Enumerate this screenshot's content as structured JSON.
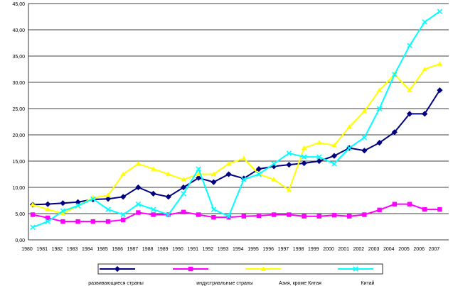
{
  "chart_data": {
    "type": "line",
    "x": [
      "1980",
      "1981",
      "1982",
      "1983",
      "1984",
      "1985",
      "1986",
      "1987",
      "1988",
      "1989",
      "1990",
      "1991",
      "1992",
      "1993",
      "1994",
      "1995",
      "1996",
      "1997",
      "1998",
      "1999",
      "2000",
      "2001",
      "2002",
      "2003",
      "2004",
      "2005",
      "2006",
      "2007"
    ],
    "y_ticks": [
      "0,00",
      "5,00",
      "10,00",
      "15,00",
      "20,00",
      "25,00",
      "30,00",
      "35,00",
      "40,00",
      "45,00"
    ],
    "ylim": [
      0,
      45
    ],
    "grid": true,
    "legend_position": "bottom",
    "series": [
      {
        "name": "развивающиеся страны",
        "color": "#000080",
        "marker": "diamond",
        "values": [
          6.7,
          6.8,
          7.0,
          7.2,
          7.7,
          7.8,
          8.2,
          10.0,
          8.8,
          8.2,
          10.0,
          11.8,
          11.0,
          12.5,
          11.7,
          13.5,
          14.0,
          14.3,
          14.6,
          15.0,
          16.0,
          17.5,
          17.0,
          18.5,
          20.5,
          24.0,
          24.0,
          28.5
        ]
      },
      {
        "name": "индустриальные страны",
        "color": "#FF00FF",
        "marker": "square",
        "values": [
          4.8,
          4.2,
          3.5,
          3.5,
          3.5,
          3.5,
          3.8,
          5.2,
          4.8,
          4.8,
          5.3,
          4.8,
          4.3,
          4.3,
          4.5,
          4.6,
          4.8,
          4.8,
          4.5,
          4.5,
          4.7,
          4.5,
          4.8,
          5.7,
          6.8,
          6.8,
          5.8,
          5.8
        ]
      },
      {
        "name": "Азия, кроме Китая",
        "color": "#FFFF00",
        "marker": "triangle",
        "values": [
          6.7,
          5.8,
          5.0,
          6.5,
          8.0,
          8.5,
          12.5,
          14.5,
          13.5,
          12.5,
          11.5,
          12.5,
          12.5,
          14.5,
          15.5,
          12.5,
          11.5,
          9.5,
          17.5,
          18.5,
          18.0,
          21.5,
          24.5,
          28.5,
          31.5,
          28.5,
          32.5,
          33.5
        ]
      },
      {
        "name": "Китай",
        "color": "#00FFFF",
        "marker": "x",
        "values": [
          2.4,
          3.5,
          5.5,
          6.5,
          7.8,
          5.8,
          4.8,
          6.8,
          5.8,
          4.8,
          8.8,
          13.5,
          5.8,
          4.5,
          11.5,
          12.5,
          14.5,
          16.5,
          15.8,
          15.8,
          14.5,
          17.5,
          19.5,
          25.0,
          31.5,
          37.0,
          41.5,
          43.5
        ]
      }
    ]
  }
}
